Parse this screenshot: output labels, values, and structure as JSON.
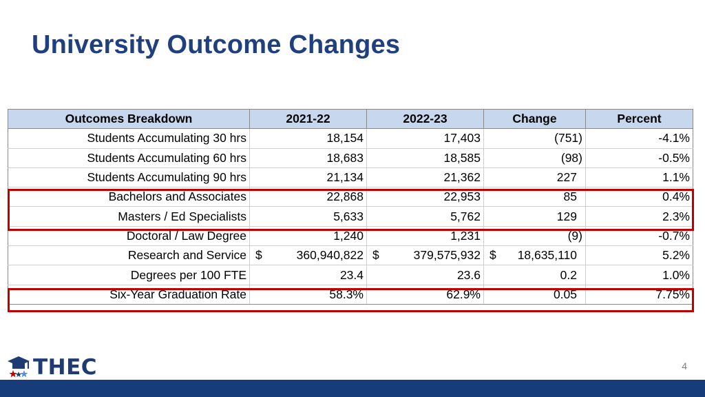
{
  "title": "University Outcome Changes",
  "table": {
    "headers": [
      "Outcomes Breakdown",
      "2021-22",
      "2022-23",
      "Change",
      "Percent"
    ],
    "rows": [
      {
        "label": "Students Accumulating 30 hrs",
        "y1": "18,154",
        "y2": "17,403",
        "change": "(751)",
        "percent": "-4.1%"
      },
      {
        "label": "Students Accumulating 60 hrs",
        "y1": "18,683",
        "y2": "18,585",
        "change": "(98)",
        "percent": "-0.5%"
      },
      {
        "label": "Students Accumulating 90 hrs",
        "y1": "21,134",
        "y2": "21,362",
        "change": "227",
        "percent": "1.1%"
      },
      {
        "label": "Bachelors and Associates",
        "y1": "22,868",
        "y2": "22,953",
        "change": "85",
        "percent": "0.4%"
      },
      {
        "label": "Masters / Ed Specialists",
        "y1": "5,633",
        "y2": "5,762",
        "change": "129",
        "percent": "2.3%"
      },
      {
        "label": "Doctoral / Law Degree",
        "y1": "1,240",
        "y2": "1,231",
        "change": "(9)",
        "percent": "-0.7%"
      },
      {
        "label": "Research and Service",
        "currency": "$",
        "y1": "360,940,822",
        "y2": "379,575,932",
        "change": "18,635,110",
        "percent": "5.2%"
      },
      {
        "label": "Degrees per 100 FTE",
        "y1": "23.4",
        "y2": "23.6",
        "change": "0.2",
        "percent": "1.0%"
      },
      {
        "label": "Six-Year Graduation Rate",
        "y1": "58.3%",
        "y2": "62.9%",
        "change": "0.05",
        "percent": "7.75%"
      }
    ]
  },
  "highlight_color": "#c00000",
  "logo": {
    "text": "THEC",
    "icon": "graduation-cap-star-icon"
  },
  "page_number": "4",
  "colors": {
    "title": "#1f3f7f",
    "header_bg": "#c6d7ee",
    "footer_bar": "#173c7a"
  }
}
